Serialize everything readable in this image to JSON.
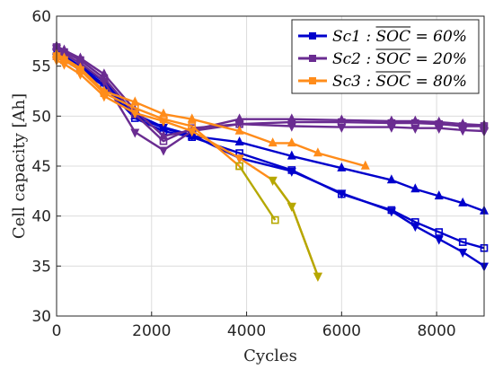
{
  "chart_data": {
    "type": "line",
    "title": "",
    "xlabel": "Cycles",
    "ylabel": "Cell capacity [Ah]",
    "xlim": [
      0,
      9000
    ],
    "ylim": [
      30,
      60
    ],
    "xticks": [
      "0",
      "2000",
      "4000",
      "6000",
      "8000"
    ],
    "yticks": [
      "30",
      "35",
      "40",
      "45",
      "50",
      "55",
      "60"
    ],
    "grid": true,
    "legend_position": "top-right",
    "legend": [
      {
        "name": "Sc1 : SOC = 60%",
        "color": "#0000cc",
        "marker": "square"
      },
      {
        "name": "Sc2 : SOC = 20%",
        "color": "#6a2c91",
        "marker": "square"
      },
      {
        "name": "Sc3 : SOC = 80%",
        "color": "#ff8c1a",
        "marker": "square"
      }
    ],
    "series": [
      {
        "color": "#0000cc",
        "marker": "triangle-up",
        "x": [
          0,
          160,
          500,
          1000,
          1650,
          2250,
          2850,
          3850,
          4950,
          6000,
          7050,
          7550,
          8050,
          8550,
          9000
        ],
        "y": [
          56.5,
          56.0,
          55.0,
          53.5,
          50.0,
          48.8,
          48.0,
          47.4,
          46.0,
          44.8,
          43.6,
          42.7,
          42.0,
          41.3,
          40.5
        ]
      },
      {
        "color": "#0000cc",
        "marker": "square",
        "x": [
          0,
          160,
          500,
          1000,
          1650,
          2250,
          2850,
          3850,
          4950,
          6000,
          7050,
          7550,
          8050,
          8550,
          9000
        ],
        "y": [
          56.0,
          55.6,
          54.6,
          53.0,
          49.8,
          48.5,
          47.9,
          46.3,
          44.6,
          42.2,
          40.6,
          39.4,
          38.4,
          37.4,
          36.8
        ]
      },
      {
        "color": "#0000cc",
        "marker": "triangle-down",
        "x": [
          0,
          160,
          500,
          1000,
          1650,
          2250,
          2850,
          3850,
          4950,
          6000,
          7050,
          7550,
          8050,
          8550,
          9000
        ],
        "y": [
          56.4,
          55.8,
          54.8,
          53.2,
          50.2,
          48.9,
          48.1,
          45.8,
          44.5,
          42.3,
          40.5,
          39.0,
          37.7,
          36.4,
          35.0
        ]
      },
      {
        "color": "#6a2c91",
        "marker": "triangle-up",
        "x": [
          0,
          160,
          500,
          1000,
          1650,
          2250,
          2850,
          3850,
          4950,
          6000,
          7050,
          7550,
          8050,
          8550,
          9000
        ],
        "y": [
          57.0,
          56.6,
          55.8,
          54.2,
          50.6,
          48.0,
          48.6,
          49.7,
          49.7,
          49.6,
          49.5,
          49.5,
          49.4,
          49.2,
          49.1
        ]
      },
      {
        "color": "#6a2c91",
        "marker": "square",
        "x": [
          0,
          160,
          500,
          1000,
          1650,
          2250,
          2850,
          3850,
          4950,
          6000,
          7050,
          7550,
          8050,
          8550,
          9000
        ],
        "y": [
          56.9,
          56.4,
          55.6,
          53.8,
          50.2,
          47.5,
          48.8,
          49.2,
          49.4,
          49.4,
          49.3,
          49.3,
          49.2,
          49.0,
          49.0
        ]
      },
      {
        "color": "#6a2c91",
        "marker": "triangle-down",
        "x": [
          0,
          160,
          500,
          1000,
          1650,
          2250,
          2850,
          3850,
          4950,
          6000,
          7050,
          7550,
          8050,
          8550,
          9000
        ],
        "y": [
          56.8,
          56.2,
          55.3,
          53.5,
          48.4,
          46.6,
          48.5,
          49.2,
          49.0,
          48.9,
          48.9,
          48.8,
          48.8,
          48.6,
          48.5
        ]
      },
      {
        "color": "#ff8c1a",
        "marker": "triangle-up",
        "x": [
          0,
          160,
          500,
          1000,
          1650,
          2250,
          2850,
          3850,
          4550,
          4950,
          5500,
          6500
        ],
        "y": [
          56.2,
          55.8,
          54.8,
          52.5,
          51.4,
          50.2,
          49.7,
          48.5,
          47.3,
          47.3,
          46.3,
          45.0
        ]
      },
      {
        "color": "#ff8c1a",
        "marker": "square",
        "x": [
          0,
          160,
          500,
          1000,
          1650,
          2250,
          2850,
          3850
        ],
        "y": [
          56.0,
          55.6,
          54.6,
          52.3,
          50.8,
          49.7,
          49.0,
          45.0
        ]
      },
      {
        "color": "#ff8c1a",
        "marker": "triangle-down",
        "x": [
          0,
          160,
          500,
          1000,
          1650,
          2250,
          2850,
          3850,
          4550,
          4950,
          5500
        ],
        "y": [
          55.6,
          55.2,
          54.2,
          52.0,
          50.3,
          49.5,
          48.5,
          45.8,
          43.6,
          41.0,
          34.0
        ]
      },
      {
        "color": "#b5a800",
        "marker": "square",
        "x": [
          3850,
          4600
        ],
        "y": [
          45.0,
          39.6
        ]
      },
      {
        "color": "#b5a800",
        "marker": "triangle-down",
        "x": [
          4550,
          4950,
          5500
        ],
        "y": [
          43.6,
          41.0,
          34.0
        ]
      }
    ]
  }
}
